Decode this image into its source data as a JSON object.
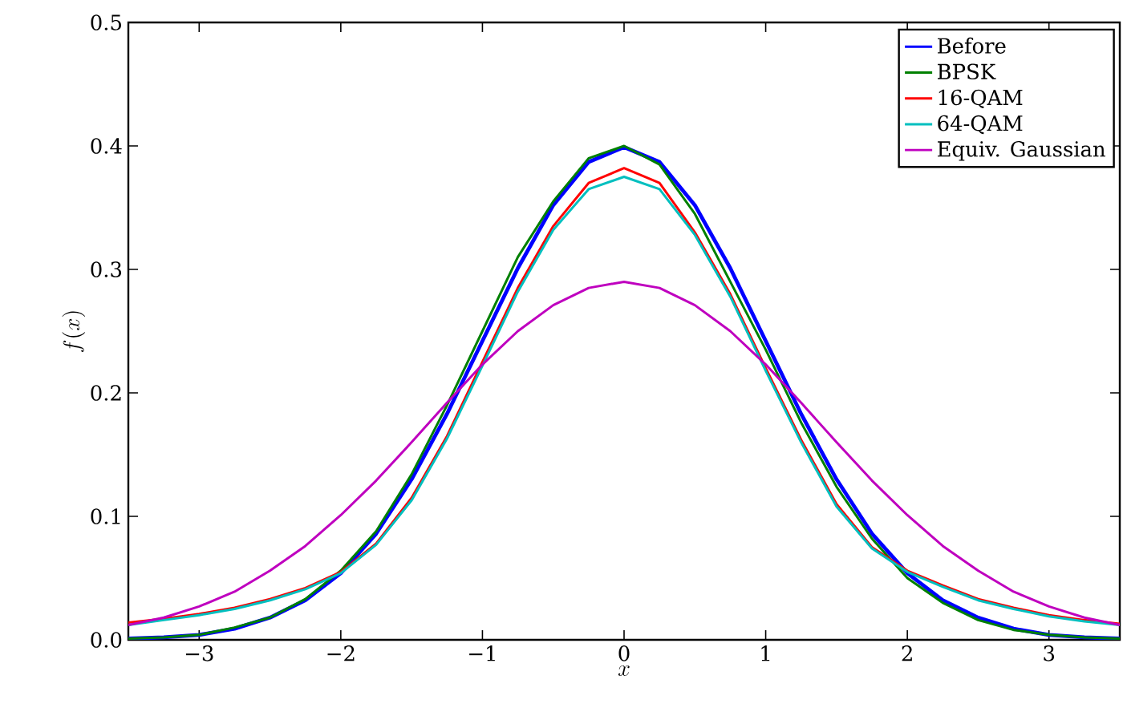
{
  "chart_data": {
    "type": "line",
    "xlabel": "x",
    "ylabel": "f(x)",
    "xlim": [
      -3.5,
      3.5
    ],
    "ylim": [
      0,
      0.5
    ],
    "xticks": [
      {
        "value": -3,
        "label": "−3"
      },
      {
        "value": -2,
        "label": "−2"
      },
      {
        "value": -1,
        "label": "−1"
      },
      0,
      1,
      2,
      3
    ],
    "yticks": [
      {
        "value": 0,
        "label": "0.0"
      },
      0.1,
      0.2,
      0.3,
      0.4,
      0.5
    ],
    "x": [
      -3.5,
      -3.25,
      -3,
      -2.75,
      -2.5,
      -2.25,
      -2,
      -1.75,
      -1.5,
      -1.25,
      -1,
      -0.75,
      -0.5,
      -0.25,
      0,
      0.25,
      0.5,
      0.75,
      1,
      1.25,
      1.5,
      1.75,
      2,
      2.25,
      2.5,
      2.75,
      3,
      3.25,
      3.5
    ],
    "legend": "top right",
    "grid": false,
    "marker": "none",
    "line_style": "solid",
    "series": [
      {
        "name": "Before",
        "color": "#0000ff",
        "values": [
          0.001,
          0.002,
          0.004,
          0.009,
          0.018,
          0.032,
          0.054,
          0.086,
          0.13,
          0.183,
          0.242,
          0.301,
          0.352,
          0.387,
          0.399,
          0.387,
          0.352,
          0.301,
          0.242,
          0.183,
          0.13,
          0.086,
          0.054,
          0.032,
          0.018,
          0.009,
          0.004,
          0.002,
          0.001
        ]
      },
      {
        "name": "BPSK",
        "color": "#008000",
        "values": [
          0.001,
          0.002,
          0.004,
          0.01,
          0.018,
          0.033,
          0.056,
          0.088,
          0.134,
          0.19,
          0.25,
          0.31,
          0.355,
          0.39,
          0.4,
          0.385,
          0.345,
          0.29,
          0.235,
          0.176,
          0.124,
          0.082,
          0.05,
          0.03,
          0.016,
          0.008,
          0.004,
          0.002,
          0.001
        ]
      },
      {
        "name": "16-QAM",
        "color": "#ff0000",
        "values": [
          0.014,
          0.017,
          0.021,
          0.026,
          0.033,
          0.042,
          0.055,
          0.078,
          0.115,
          0.165,
          0.225,
          0.285,
          0.335,
          0.37,
          0.382,
          0.37,
          0.33,
          0.28,
          0.22,
          0.162,
          0.11,
          0.075,
          0.056,
          0.044,
          0.033,
          0.026,
          0.02,
          0.016,
          0.013
        ]
      },
      {
        "name": "64-QAM",
        "color": "#00bfbf",
        "values": [
          0.012,
          0.016,
          0.02,
          0.025,
          0.032,
          0.041,
          0.054,
          0.077,
          0.113,
          0.163,
          0.222,
          0.282,
          0.332,
          0.365,
          0.375,
          0.365,
          0.328,
          0.278,
          0.218,
          0.16,
          0.108,
          0.074,
          0.055,
          0.043,
          0.032,
          0.025,
          0.019,
          0.015,
          0.012
        ]
      },
      {
        "name": "Equiv. Gaussian",
        "color": "#bf00bf",
        "values": [
          0.012,
          0.018,
          0.027,
          0.039,
          0.056,
          0.076,
          0.101,
          0.129,
          0.16,
          0.192,
          0.223,
          0.25,
          0.271,
          0.285,
          0.29,
          0.285,
          0.271,
          0.25,
          0.223,
          0.192,
          0.16,
          0.129,
          0.101,
          0.076,
          0.056,
          0.039,
          0.027,
          0.018,
          0.012
        ]
      }
    ]
  }
}
